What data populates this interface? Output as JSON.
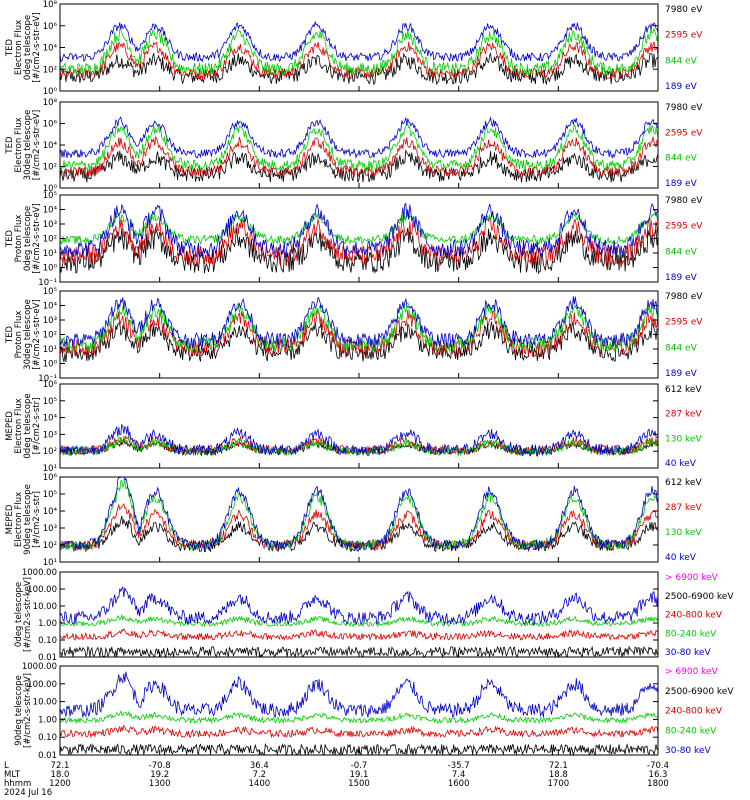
{
  "chart_data": [
    {
      "type": "line",
      "ylabel": [
        "TED",
        "Electron Flux",
        "0deg telescope",
        "[#/cm2-s-str-eV]"
      ],
      "yticks": [
        "10⁰",
        "10²",
        "10⁴",
        "10⁶",
        "10⁸"
      ],
      "ylim": [
        1,
        100000000
      ],
      "series": [
        {
          "name": "7980 eV",
          "color": "#000000",
          "base": 1.3,
          "amp": 1.5,
          "noise": 0.7
        },
        {
          "name": "2595 eV",
          "color": "#dd0000",
          "base": 1.6,
          "amp": 2.5,
          "noise": 0.5
        },
        {
          "name": "844 eV",
          "color": "#00cc00",
          "base": 2.0,
          "amp": 3.2,
          "noise": 0.6
        },
        {
          "name": "189 eV",
          "color": "#0000cc",
          "base": 3.1,
          "amp": 2.9,
          "noise": 0.4
        }
      ]
    },
    {
      "type": "line",
      "ylabel": [
        "TED",
        "Electron Flux",
        "30deg telescope",
        "[#/cm2-s-str-eV]"
      ],
      "yticks": [
        "10⁰",
        "10²",
        "10⁴",
        "10⁶",
        "10⁸"
      ],
      "ylim": [
        1,
        100000000
      ],
      "series": [
        {
          "name": "7980 eV",
          "color": "#000000",
          "base": 1.2,
          "amp": 1.6,
          "noise": 0.7
        },
        {
          "name": "2595 eV",
          "color": "#dd0000",
          "base": 1.5,
          "amp": 2.8,
          "noise": 0.5
        },
        {
          "name": "844 eV",
          "color": "#00cc00",
          "base": 2.1,
          "amp": 3.4,
          "noise": 0.5
        },
        {
          "name": "189 eV",
          "color": "#0000cc",
          "base": 3.2,
          "amp": 3.0,
          "noise": 0.4
        }
      ]
    },
    {
      "type": "line",
      "ylabel": [
        "TED",
        "Proton Flux",
        "0deg telescope",
        "[#/cm2-s-str-eV]"
      ],
      "yticks": [
        "10⁻¹",
        "10⁰",
        "10¹",
        "10²",
        "10³",
        "10⁴",
        "10⁵"
      ],
      "ylim": [
        0.1,
        100000
      ],
      "series": [
        {
          "name": "7980 eV",
          "color": "#000000",
          "base": 0.4,
          "amp": 1.6,
          "noise": 0.8
        },
        {
          "name": "2595 eV",
          "color": "#dd0000",
          "base": 0.8,
          "amp": 2.0,
          "noise": 0.7
        },
        {
          "name": "844 eV",
          "color": "#00cc00",
          "base": 1.9,
          "amp": 1.6,
          "noise": 0.3
        },
        {
          "name": "189 eV",
          "color": "#0000cc",
          "base": 1.3,
          "amp": 2.6,
          "noise": 0.6
        }
      ]
    },
    {
      "type": "line",
      "ylabel": [
        "TED",
        "Proton Flux",
        "30deg telescope",
        "[#/cm2-s-str-eV]"
      ],
      "yticks": [
        "10⁻¹",
        "10⁰",
        "10¹",
        "10²",
        "10³",
        "10⁴",
        "10⁵"
      ],
      "ylim": [
        0.1,
        100000
      ],
      "series": [
        {
          "name": "7980 eV",
          "color": "#000000",
          "base": 0.7,
          "amp": 1.6,
          "noise": 0.6
        },
        {
          "name": "2595 eV",
          "color": "#dd0000",
          "base": 1.1,
          "amp": 2.0,
          "noise": 0.6
        },
        {
          "name": "844 eV",
          "color": "#00cc00",
          "base": 1.3,
          "amp": 2.4,
          "noise": 0.5
        },
        {
          "name": "189 eV",
          "color": "#0000cc",
          "base": 1.6,
          "amp": 2.6,
          "noise": 0.5
        }
      ]
    },
    {
      "type": "line",
      "ylabel": [
        "MEPED",
        "Electron Flux",
        "0deg telescope",
        "[#/cm2-s-str]"
      ],
      "yticks": [
        "10¹",
        "10²",
        "10³",
        "10⁴",
        "10⁵",
        "10⁶"
      ],
      "ylim": [
        10,
        1000000
      ],
      "series": [
        {
          "name": "612 keV",
          "color": "#000000",
          "base": 2.0,
          "amp": 0.4,
          "noise": 0.2
        },
        {
          "name": "287 keV",
          "color": "#dd0000",
          "base": 2.05,
          "amp": 0.5,
          "noise": 0.3
        },
        {
          "name": "130 keV",
          "color": "#00cc00",
          "base": 2.0,
          "amp": 0.5,
          "noise": 0.25
        },
        {
          "name": "40 keV",
          "color": "#0000cc",
          "base": 2.05,
          "amp": 1.0,
          "noise": 0.35
        }
      ]
    },
    {
      "type": "line",
      "ylabel": [
        "MEPED",
        "Electron Flux",
        "90deg telescope",
        "[#/cm2-s-str]"
      ],
      "yticks": [
        "10¹",
        "10²",
        "10³",
        "10⁴",
        "10⁵",
        "10⁶"
      ],
      "ylim": [
        10,
        1000000
      ],
      "series": [
        {
          "name": "612 keV",
          "color": "#000000",
          "base": 1.9,
          "amp": 1.2,
          "noise": 0.3
        },
        {
          "name": "287 keV",
          "color": "#dd0000",
          "base": 2.0,
          "amp": 1.8,
          "noise": 0.3
        },
        {
          "name": "130 keV",
          "color": "#00cc00",
          "base": 2.0,
          "amp": 2.8,
          "noise": 0.3
        },
        {
          "name": "40 keV",
          "color": "#0000cc",
          "base": 2.0,
          "amp": 3.2,
          "noise": 0.3
        }
      ]
    },
    {
      "type": "line",
      "ylabel": [
        "0deg telescope",
        "[#/cm2-s-str-keV]"
      ],
      "yticks": [
        "0.01",
        "0.10",
        "1.00",
        "10.00",
        "100.00",
        "1000.00"
      ],
      "ylim": [
        0.01,
        1000
      ],
      "series": [
        {
          "name": "> 6900 keV",
          "color": "#ff00ff",
          "base": -2.0,
          "amp": 0.0,
          "noise": 0.0
        },
        {
          "name": "2500-6900 keV",
          "color": "#000000",
          "base": -1.7,
          "amp": 0.0,
          "noise": 0.3
        },
        {
          "name": "240-800 keV",
          "color": "#dd0000",
          "base": -0.8,
          "amp": 0.2,
          "noise": 0.2
        },
        {
          "name": "80-240 keV",
          "color": "#00cc00",
          "base": -0.05,
          "amp": 0.3,
          "noise": 0.15
        },
        {
          "name": "30-80 keV",
          "color": "#0000cc",
          "base": 0.3,
          "amp": 1.2,
          "noise": 0.4
        }
      ]
    },
    {
      "type": "line",
      "ylabel": [
        "90deg telescope",
        "[#/cm2-s-str-keV]"
      ],
      "yticks": [
        "0.01",
        "0.10",
        "1.00",
        "10.00",
        "100.00",
        "1000.00"
      ],
      "ylim": [
        0.01,
        1000
      ],
      "series": [
        {
          "name": "> 6900 keV",
          "color": "#ff00ff",
          "base": -2.0,
          "amp": 0.0,
          "noise": 0.0
        },
        {
          "name": "2500-6900 keV",
          "color": "#000000",
          "base": -1.7,
          "amp": 0.0,
          "noise": 0.3
        },
        {
          "name": "240-800 keV",
          "color": "#dd0000",
          "base": -0.8,
          "amp": 0.2,
          "noise": 0.2
        },
        {
          "name": "80-240 keV",
          "color": "#00cc00",
          "base": -0.05,
          "amp": 0.3,
          "noise": 0.15
        },
        {
          "name": "30-80 keV",
          "color": "#0000cc",
          "base": 0.5,
          "amp": 1.5,
          "noise": 0.4
        }
      ]
    }
  ],
  "xaxis": {
    "row_labels": [
      "L",
      "MLT",
      "hhmm",
      "2024 Jul 16"
    ],
    "columns": [
      {
        "L": "72.1",
        "MLT": "18.0",
        "hhmm": "1200"
      },
      {
        "L": "-70.8",
        "MLT": "19.2",
        "hhmm": "1300"
      },
      {
        "L": "36.4",
        "MLT": "7.2",
        "hhmm": "1400"
      },
      {
        "L": "-0.7",
        "MLT": "19.1",
        "hhmm": "1500"
      },
      {
        "L": "-35.7",
        "MLT": "7.4",
        "hhmm": "1600"
      },
      {
        "L": "72.1",
        "MLT": "18.8",
        "hhmm": "1700"
      },
      {
        "L": "-70.4",
        "MLT": "16.3",
        "hhmm": "1800"
      }
    ]
  }
}
